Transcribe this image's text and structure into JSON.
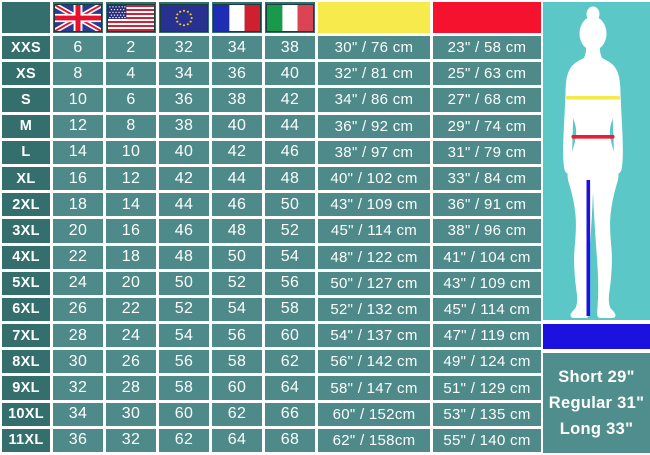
{
  "size_table": {
    "corner_header": "",
    "header_icons": [
      "uk-flag",
      "us-flag",
      "eu-flag",
      "france-flag",
      "italy-flag",
      "bust-color-swatch",
      "waist-color-swatch"
    ],
    "bust_header_color": "#f7ea4d",
    "waist_header_color": "#f4122f",
    "column_keys": [
      "size",
      "uk",
      "us",
      "eu",
      "fr",
      "it",
      "bust",
      "waist"
    ],
    "rows": [
      {
        "size": "XXS",
        "values": [
          "6",
          "2",
          "32",
          "34",
          "38",
          "30\" / 76 cm",
          "23\" / 58 cm"
        ]
      },
      {
        "size": "XS",
        "values": [
          "8",
          "4",
          "34",
          "36",
          "40",
          "32\" / 81 cm",
          "25\" / 63 cm"
        ]
      },
      {
        "size": "S",
        "values": [
          "10",
          "6",
          "36",
          "38",
          "42",
          "34\" / 86 cm",
          "27\" / 68 cm"
        ]
      },
      {
        "size": "M",
        "values": [
          "12",
          "8",
          "38",
          "40",
          "44",
          "36\" / 92 cm",
          "29\" / 74 cm"
        ]
      },
      {
        "size": "L",
        "values": [
          "14",
          "10",
          "40",
          "42",
          "46",
          "38\" / 97 cm",
          "31\" / 79 cm"
        ]
      },
      {
        "size": "XL",
        "values": [
          "16",
          "12",
          "42",
          "44",
          "48",
          "40\" / 102 cm",
          "33\" / 84 cm"
        ]
      },
      {
        "size": "2XL",
        "values": [
          "18",
          "14",
          "44",
          "46",
          "50",
          "43\" / 109 cm",
          "36\" / 91 cm"
        ]
      },
      {
        "size": "3XL",
        "values": [
          "20",
          "16",
          "46",
          "48",
          "52",
          "45\" / 114 cm",
          "38\" / 96 cm"
        ]
      },
      {
        "size": "4XL",
        "values": [
          "22",
          "18",
          "48",
          "50",
          "54",
          "48\" / 122 cm",
          "41\" / 104 cm"
        ]
      },
      {
        "size": "5XL",
        "values": [
          "24",
          "20",
          "50",
          "52",
          "56",
          "50\" / 127 cm",
          "43\" / 109 cm"
        ]
      },
      {
        "size": "6XL",
        "values": [
          "26",
          "22",
          "52",
          "54",
          "58",
          "52\" / 132 cm",
          "45\" / 114 cm"
        ]
      },
      {
        "size": "7XL",
        "values": [
          "28",
          "24",
          "54",
          "56",
          "60",
          "54\" / 137 cm",
          "47\" / 119 cm"
        ]
      },
      {
        "size": "8XL",
        "values": [
          "30",
          "26",
          "56",
          "58",
          "62",
          "56\" / 142 cm",
          "49\" / 124 cm"
        ]
      },
      {
        "size": "9XL",
        "values": [
          "32",
          "28",
          "58",
          "60",
          "64",
          "58\" / 147 cm",
          "51\" / 129 cm"
        ]
      },
      {
        "size": "10XL",
        "values": [
          "34",
          "30",
          "60",
          "62",
          "66",
          "60\" / 152cm",
          "53\" / 135 cm"
        ]
      },
      {
        "size": "11XL",
        "values": [
          "36",
          "32",
          "62",
          "64",
          "68",
          "62\" / 158cm",
          "55\" / 140 cm"
        ]
      }
    ]
  },
  "figure": {
    "icons": [
      "female-silhouette",
      "bust-measure-line",
      "waist-measure-line",
      "inseam-measure-line",
      "length-bar"
    ],
    "silhouette_color": "#ffffff",
    "bust_line_color": "#f5e94b",
    "waist_line_color": "#ee1c30",
    "inseam_line_color": "#1c12e0"
  },
  "length_options": {
    "lines": [
      "Short 29\"",
      "Regular 31\"",
      "Long 33\""
    ]
  },
  "colors": {
    "header_cell": "#346f6e",
    "data_cell": "#4d8a89",
    "grid_line": "#ffffff",
    "figure_bg": "#5bc7c7",
    "length_bar": "#1c12e0",
    "length_panel_bg": "#508e8d",
    "text": "#ffffff"
  }
}
